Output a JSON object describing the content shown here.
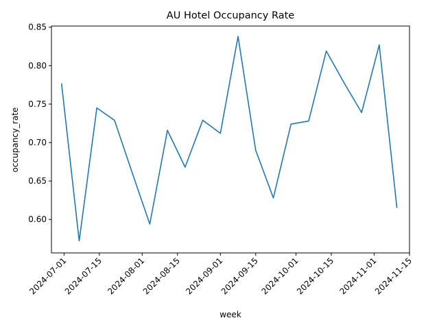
{
  "chart_data": {
    "type": "line",
    "title": "AU Hotel Occupancy Rate",
    "xlabel": "week",
    "ylabel": "occupancy_rate",
    "ylim": [
      0.5565,
      0.8515
    ],
    "xlim": [
      "2024-06-26",
      "2024-11-15"
    ],
    "grid": false,
    "x_ticks": [
      "2024-07-01",
      "2024-07-15",
      "2024-08-01",
      "2024-08-15",
      "2024-09-01",
      "2024-09-15",
      "2024-10-01",
      "2024-10-15",
      "2024-11-01",
      "2024-11-15"
    ],
    "y_ticks": [
      "0.60",
      "0.65",
      "0.70",
      "0.75",
      "0.80",
      "0.85"
    ],
    "series": [
      {
        "color": "#1f77b4",
        "x": [
          "2024-06-30",
          "2024-07-07",
          "2024-07-14",
          "2024-07-21",
          "2024-07-28",
          "2024-08-04",
          "2024-08-11",
          "2024-08-18",
          "2024-08-25",
          "2024-09-01",
          "2024-09-08",
          "2024-09-15",
          "2024-09-22",
          "2024-09-29",
          "2024-10-06",
          "2024-10-13",
          "2024-10-20",
          "2024-10-27",
          "2024-11-03",
          "2024-11-10"
        ],
        "values": [
          0.777,
          0.572,
          0.745,
          0.729,
          0.661,
          0.594,
          0.716,
          0.668,
          0.729,
          0.712,
          0.838,
          0.69,
          0.628,
          0.724,
          0.728,
          0.819,
          0.778,
          0.739,
          0.827,
          0.615
        ]
      }
    ]
  }
}
